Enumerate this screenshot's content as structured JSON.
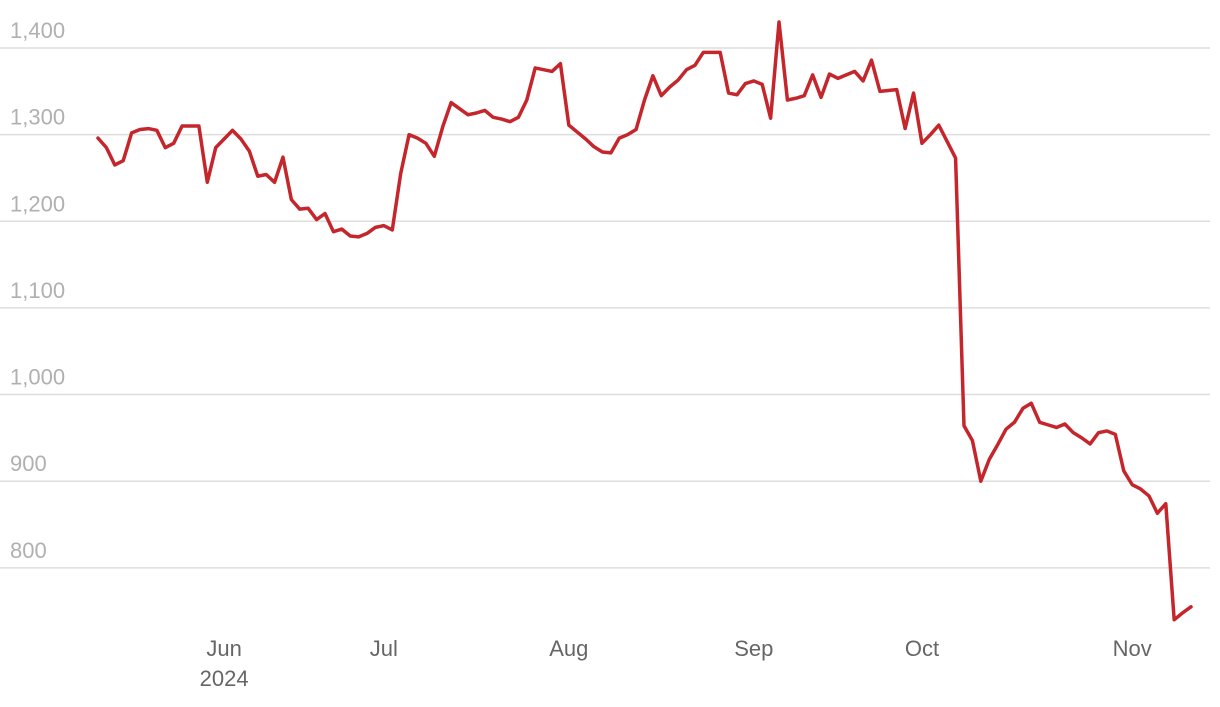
{
  "chart_data": {
    "type": "line",
    "color": "#c4262b",
    "grid": true,
    "year_label": "2024",
    "categories": [
      null,
      null,
      null,
      null,
      null,
      null,
      null,
      null,
      null,
      null,
      null,
      null,
      null,
      null,
      null,
      "Jun",
      null,
      null,
      null,
      null,
      null,
      null,
      null,
      null,
      null,
      null,
      null,
      null,
      null,
      null,
      null,
      null,
      null,
      null,
      "Jul",
      null,
      null,
      null,
      null,
      null,
      null,
      null,
      null,
      null,
      null,
      null,
      null,
      null,
      null,
      null,
      null,
      null,
      null,
      null,
      null,
      null,
      "Aug",
      null,
      null,
      null,
      null,
      null,
      null,
      null,
      null,
      null,
      null,
      null,
      null,
      null,
      null,
      null,
      null,
      null,
      null,
      null,
      null,
      null,
      "Sep",
      null,
      null,
      null,
      null,
      null,
      null,
      null,
      null,
      null,
      null,
      null,
      null,
      null,
      null,
      null,
      null,
      null,
      null,
      null,
      "Oct",
      null,
      null,
      null,
      null,
      null,
      null,
      null,
      null,
      null,
      null,
      null,
      null,
      null,
      null,
      null,
      null,
      null,
      null,
      null,
      null,
      null,
      null,
      null,
      null,
      "Nov",
      null,
      null,
      null,
      null,
      null,
      null,
      null
    ],
    "values": [
      1296,
      1285,
      1265,
      1270,
      1302,
      1306,
      1307,
      1305,
      1285,
      1290,
      1310,
      1310,
      1310,
      1245,
      1285,
      1295,
      1305,
      1295,
      1281,
      1252,
      1254,
      1245,
      1274,
      1225,
      1214,
      1215,
      1202,
      1209,
      1188,
      1191,
      1183,
      1182,
      1186,
      1193,
      1195,
      1190,
      1255,
      1300,
      1296,
      1290,
      1275,
      1309,
      1337,
      1330,
      1323,
      1325,
      1328,
      1320,
      1318,
      1315,
      1320,
      1340,
      1377,
      1375,
      1373,
      1382,
      1311,
      1303,
      1295,
      1286,
      1280,
      1279,
      1296,
      1300,
      1306,
      1340,
      1368,
      1345,
      1355,
      1363,
      1375,
      1380,
      1395,
      1395,
      1395,
      1348,
      1346,
      1359,
      1362,
      1358,
      1319,
      1430,
      1340,
      1342,
      1345,
      1369,
      1343,
      1370,
      1365,
      1369,
      1373,
      1362,
      1386,
      1350,
      1351,
      1352,
      1307,
      1348,
      1290,
      1300,
      1311,
      1292,
      1273,
      964,
      947,
      900,
      925,
      942,
      960,
      968,
      984,
      990,
      968,
      965,
      962,
      966,
      956,
      950,
      943,
      956,
      958,
      954,
      912,
      896,
      891,
      883,
      863,
      874,
      740,
      748,
      755
    ],
    "ylim": [
      734,
      1432
    ],
    "yticks": [
      800,
      900,
      {
        "value": 1000,
        "label": "1,000"
      },
      {
        "value": 1100,
        "label": "1,100"
      },
      {
        "value": 1200,
        "label": "1,200"
      },
      {
        "value": 1300,
        "label": "1,300"
      },
      {
        "value": 1400,
        "label": "1,400"
      }
    ]
  }
}
